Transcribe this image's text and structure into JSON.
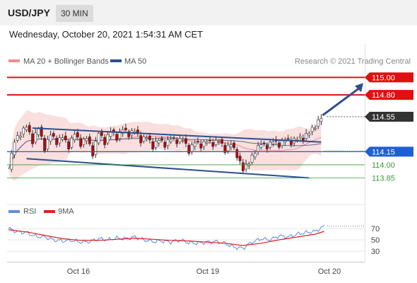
{
  "header": {
    "symbol": "USD/JPY",
    "timeframe": "30 MIN"
  },
  "datetime": "Wednesday, October 20, 2021 1:54:31 AM CET",
  "credit": "Research © 2021 Trading Central",
  "colors": {
    "resistance": "#e01010",
    "support_main": "#1f5fd6",
    "support_minor": "#3a9a3a",
    "current": "#333333",
    "trend": "#2b4f8f",
    "bollinger": "#f4b8b8",
    "rsi": "#5b8de0",
    "rsi_ma": "#e02020"
  },
  "chart_data": [
    {
      "type": "candlestick",
      "legend": [
        {
          "name": "MA 20 + Bollinger Bands",
          "color": "#f28b8b"
        },
        {
          "name": "MA 50",
          "color": "#2b4f8f"
        }
      ],
      "x_ticks": [
        "Oct 16",
        "Oct 19",
        "Oct 20"
      ],
      "ylim": [
        113.7,
        115.1
      ],
      "levels": [
        {
          "value": 115.0,
          "label": "115.00",
          "kind": "resistance"
        },
        {
          "value": 114.8,
          "label": "114.80",
          "kind": "resistance"
        },
        {
          "value": 114.55,
          "label": "114.55",
          "kind": "current"
        },
        {
          "value": 114.15,
          "label": "114.15",
          "kind": "support_main"
        },
        {
          "value": 114.0,
          "label": "114.00",
          "kind": "support_minor"
        },
        {
          "value": 113.85,
          "label": "113.85",
          "kind": "support_minor"
        }
      ],
      "price_path": [
        [
          0,
          113.95
        ],
        [
          2,
          114.28
        ],
        [
          4,
          114.35
        ],
        [
          6,
          114.45
        ],
        [
          8,
          114.26
        ],
        [
          10,
          114.43
        ],
        [
          12,
          114.18
        ],
        [
          14,
          114.36
        ],
        [
          16,
          114.25
        ],
        [
          18,
          114.33
        ],
        [
          20,
          114.2
        ],
        [
          22,
          114.37
        ],
        [
          24,
          114.23
        ],
        [
          26,
          114.32
        ],
        [
          28,
          114.12
        ],
        [
          30,
          114.38
        ],
        [
          32,
          114.25
        ],
        [
          34,
          114.4
        ],
        [
          36,
          114.3
        ],
        [
          38,
          114.42
        ],
        [
          40,
          114.34
        ],
        [
          42,
          114.4
        ],
        [
          44,
          114.27
        ],
        [
          46,
          114.33
        ],
        [
          48,
          114.2
        ],
        [
          50,
          114.3
        ],
        [
          52,
          114.22
        ],
        [
          54,
          114.31
        ],
        [
          56,
          114.26
        ],
        [
          58,
          114.3
        ],
        [
          60,
          114.15
        ],
        [
          62,
          114.27
        ],
        [
          64,
          114.21
        ],
        [
          66,
          114.28
        ],
        [
          68,
          114.23
        ],
        [
          70,
          114.29
        ],
        [
          72,
          114.16
        ],
        [
          74,
          114.25
        ],
        [
          76,
          114.1
        ],
        [
          78,
          113.95
        ],
        [
          80,
          114.03
        ],
        [
          82,
          114.15
        ],
        [
          84,
          114.25
        ],
        [
          86,
          114.2
        ],
        [
          88,
          114.28
        ],
        [
          90,
          114.22
        ],
        [
          92,
          114.3
        ],
        [
          94,
          114.25
        ],
        [
          96,
          114.31
        ],
        [
          98,
          114.3
        ],
        [
          100,
          114.38
        ],
        [
          102,
          114.44
        ],
        [
          104,
          114.55
        ]
      ],
      "trendlines": [
        {
          "from": [
            8,
            114.42
          ],
          "to": [
            104,
            114.26
          ]
        },
        {
          "from": [
            6,
            114.07
          ],
          "to": [
            100,
            113.85
          ]
        }
      ],
      "forecast_arrow": {
        "from": [
          104,
          114.55
        ],
        "to": [
          118,
          115.0
        ]
      }
    },
    {
      "type": "line",
      "legend": [
        {
          "name": "RSI",
          "color": "#5b8de0"
        },
        {
          "name": "9MA",
          "color": "#e02020"
        }
      ],
      "ylim": [
        10,
        90
      ],
      "y_ticks": [
        70,
        50,
        30
      ],
      "rsi": [
        [
          0,
          70
        ],
        [
          3,
          64
        ],
        [
          6,
          63
        ],
        [
          9,
          56
        ],
        [
          12,
          55
        ],
        [
          15,
          50
        ],
        [
          18,
          48
        ],
        [
          21,
          49
        ],
        [
          24,
          46
        ],
        [
          27,
          47
        ],
        [
          30,
          52
        ],
        [
          33,
          50
        ],
        [
          36,
          53
        ],
        [
          39,
          52
        ],
        [
          42,
          55
        ],
        [
          45,
          50
        ],
        [
          48,
          47
        ],
        [
          51,
          48
        ],
        [
          54,
          46
        ],
        [
          57,
          50
        ],
        [
          60,
          45
        ],
        [
          63,
          44
        ],
        [
          66,
          46
        ],
        [
          69,
          47
        ],
        [
          72,
          44
        ],
        [
          75,
          37
        ],
        [
          78,
          35
        ],
        [
          81,
          46
        ],
        [
          84,
          52
        ],
        [
          87,
          50
        ],
        [
          90,
          57
        ],
        [
          93,
          55
        ],
        [
          96,
          60
        ],
        [
          99,
          63
        ],
        [
          102,
          65
        ],
        [
          105,
          74
        ]
      ],
      "ma9": [
        [
          0,
          68
        ],
        [
          6,
          64
        ],
        [
          12,
          58
        ],
        [
          18,
          52
        ],
        [
          24,
          49
        ],
        [
          30,
          49
        ],
        [
          36,
          51
        ],
        [
          42,
          53
        ],
        [
          48,
          51
        ],
        [
          54,
          49
        ],
        [
          60,
          48
        ],
        [
          66,
          46
        ],
        [
          72,
          44
        ],
        [
          78,
          40
        ],
        [
          84,
          44
        ],
        [
          90,
          50
        ],
        [
          96,
          55
        ],
        [
          102,
          60
        ],
        [
          105,
          65
        ]
      ]
    }
  ]
}
